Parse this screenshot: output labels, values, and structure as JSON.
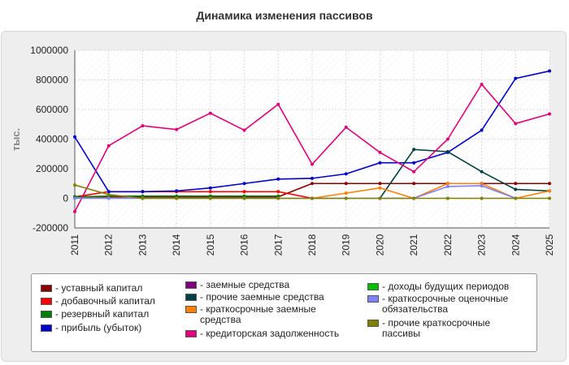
{
  "chart_data": {
    "type": "line",
    "title": "Динамика изменения пассивов",
    "ylabel": "тыс.",
    "xlabel": "",
    "ylim": [
      -200000,
      1000000
    ],
    "yticks": [
      -200000,
      0,
      200000,
      400000,
      600000,
      800000,
      1000000
    ],
    "ytick_labels": [
      "-200000",
      "0",
      "200000",
      "400000",
      "600000",
      "800000",
      "1000000"
    ],
    "x": [
      "2011",
      "2012",
      "2013",
      "2014",
      "2015",
      "2016",
      "2017",
      "2018",
      "2019",
      "2020",
      "2021",
      "2022",
      "2023",
      "2024",
      "2025"
    ],
    "grid": true,
    "legend_position": "bottom",
    "series": [
      {
        "name": "- уставный капитал",
        "color": "#8b0000",
        "values": [
          10000,
          10000,
          10000,
          10000,
          10000,
          10000,
          10000,
          100000,
          100000,
          100000,
          100000,
          100000,
          100000,
          100000,
          100000
        ]
      },
      {
        "name": "- добавочный капитал",
        "color": "#ff0000",
        "values": [
          10000,
          45000,
          45000,
          45000,
          45000,
          45000,
          45000,
          0,
          null,
          null,
          null,
          null,
          null,
          null,
          null
        ]
      },
      {
        "name": "- резервный капитал",
        "color": "#008000",
        "values": [
          10000,
          15000,
          15000,
          15000,
          15000,
          15000,
          15000,
          null,
          null,
          null,
          null,
          null,
          null,
          null,
          null
        ]
      },
      {
        "name": "- прибыль (убыток)",
        "color": "#0000cc",
        "values": [
          415000,
          45000,
          45000,
          50000,
          70000,
          100000,
          130000,
          135000,
          165000,
          240000,
          240000,
          310000,
          460000,
          810000,
          860000
        ]
      },
      {
        "name": "- заемные средства",
        "color": "#800080",
        "values": [
          null,
          null,
          null,
          null,
          null,
          null,
          null,
          null,
          null,
          null,
          null,
          null,
          null,
          null,
          null
        ]
      },
      {
        "name": "- прочие заемные средства",
        "color": "#004040",
        "values": [
          null,
          null,
          null,
          null,
          null,
          null,
          null,
          null,
          null,
          0,
          330000,
          315000,
          180000,
          60000,
          50000
        ]
      },
      {
        "name": "- краткосрочные заемные средства",
        "color": "#ff8000",
        "values": [
          null,
          null,
          null,
          null,
          null,
          null,
          null,
          0,
          35000,
          70000,
          0,
          100000,
          100000,
          0,
          50000
        ]
      },
      {
        "name": "- кредиторская задолженность",
        "color": "#e0007a",
        "values": [
          -90000,
          355000,
          490000,
          465000,
          575000,
          460000,
          635000,
          230000,
          480000,
          310000,
          180000,
          400000,
          770000,
          505000,
          570000
        ]
      },
      {
        "name": "- доходы будущих периодов",
        "color": "#00c000",
        "values": [
          null,
          null,
          null,
          null,
          null,
          null,
          null,
          null,
          null,
          null,
          null,
          null,
          null,
          null,
          null
        ]
      },
      {
        "name": "- краткосрочные оценочные обязательства",
        "color": "#8080ff",
        "values": [
          0,
          0,
          0,
          0,
          0,
          0,
          0,
          0,
          0,
          0,
          0,
          80000,
          85000,
          0,
          null
        ]
      },
      {
        "name": "- прочие краткосрочные пассивы",
        "color": "#808000",
        "values": [
          90000,
          25000,
          0,
          0,
          0,
          0,
          0,
          0,
          0,
          0,
          0,
          0,
          0,
          0,
          0
        ]
      }
    ]
  }
}
